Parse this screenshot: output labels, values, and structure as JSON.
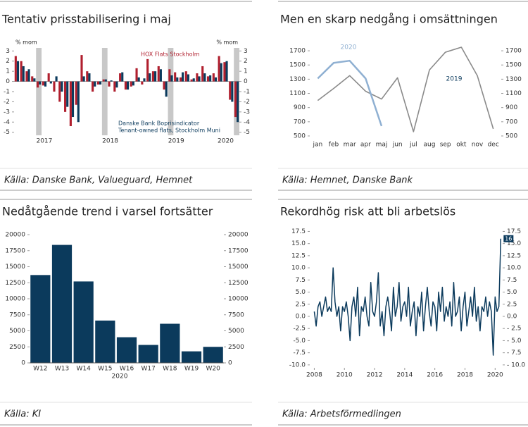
{
  "chart_data": [
    {
      "type": "bar",
      "title": "Tentativ prisstabilisering i maj",
      "source": "Källa: Danske Bank, Valueguard, Hemnet",
      "ylabel": "% mom",
      "categories": [
        null,
        null,
        null,
        null,
        null,
        "2017",
        null,
        null,
        null,
        null,
        null,
        null,
        null,
        null,
        null,
        null,
        null,
        "2018",
        null,
        null,
        null,
        null,
        null,
        null,
        null,
        null,
        null,
        null,
        null,
        "2019",
        null,
        null,
        null,
        null,
        null,
        null,
        null,
        null,
        "2020",
        null,
        null
      ],
      "shaded": [
        4,
        16,
        28,
        40
      ],
      "series": [
        {
          "name": "HOX Flats Stockholm",
          "color": "#b01f2e",
          "values": [
            2.5,
            2.0,
            1.0,
            0.5,
            -0.6,
            -0.4,
            0.8,
            -1.0,
            -2.0,
            -3.0,
            -4.4,
            -2.3,
            2.6,
            1.0,
            -1.0,
            -0.3,
            0.2,
            -0.5,
            -1.0,
            0.8,
            -0.8,
            -0.5,
            1.3,
            -0.3,
            2.2,
            1.0,
            1.5,
            -0.8,
            1.2,
            0.9,
            0.4,
            1.0,
            0.2,
            0.8,
            1.5,
            0.5,
            0.8,
            2.5,
            1.9,
            -1.8,
            -3.5
          ]
        },
        {
          "name": "Danske Bank Boprisindicator",
          "note": "Tenant-owned flats, Stockholm Muni",
          "color": "#0b3a5c",
          "values": [
            2.0,
            1.5,
            1.2,
            0.3,
            -0.3,
            -0.5,
            -0.2,
            0.5,
            -1.0,
            -2.5,
            -3.5,
            -4.0,
            0.5,
            0.8,
            -0.5,
            -0.3,
            0.2,
            0.1,
            -0.6,
            0.9,
            -0.8,
            -0.4,
            0.4,
            0.3,
            0.8,
            1.0,
            1.2,
            -1.5,
            0.6,
            0.4,
            0.9,
            0.7,
            0.3,
            0.5,
            0.8,
            0.6,
            0.4,
            1.8,
            2.0,
            -2.0,
            -4.0
          ]
        }
      ],
      "ylim": [
        -5.3,
        3.3
      ],
      "yticks": [
        -5,
        -4,
        -3,
        -2,
        -1,
        0,
        1,
        2,
        3
      ],
      "y2lim": [
        -5.3,
        3.3
      ],
      "y2ticks": [
        -5,
        -4,
        -3,
        -2,
        -1,
        0,
        1,
        2,
        3
      ]
    },
    {
      "type": "line",
      "title": "Men en skarp nedgång i omsättningen",
      "source": "Källa: Hemnet, Danske Bank",
      "categories": [
        "jan",
        "feb",
        "mar",
        "apr",
        "maj",
        "jun",
        "jul",
        "aug",
        "sep",
        "okt",
        "nov",
        "dec"
      ],
      "series": [
        {
          "name": "2020",
          "color": "#8fb0d2",
          "values": [
            1310,
            1530,
            1560,
            1310,
            640,
            null,
            null,
            null,
            null,
            null,
            null,
            null
          ]
        },
        {
          "name": "2019",
          "color": "#8a8a8a",
          "values": [
            1000,
            1170,
            1350,
            1130,
            1020,
            1320,
            560,
            1430,
            1680,
            1750,
            1350,
            600
          ]
        }
      ],
      "ylim": [
        450,
        1800
      ],
      "yticks": [
        500,
        700,
        900,
        1100,
        1300,
        1500,
        1700
      ],
      "y2lim": [
        450,
        1800
      ],
      "y2ticks": [
        500,
        700,
        900,
        1100,
        1300,
        1500,
        1700
      ]
    },
    {
      "type": "bar",
      "title": "Nedåtgående trend i varsel fortsätter",
      "source": "Källa: KI",
      "xlabel": "2020",
      "categories": [
        "W12",
        "W13",
        "W14",
        "W15",
        "W16",
        "W17",
        "W18",
        "W19",
        "W20"
      ],
      "values": [
        13700,
        18400,
        12700,
        6600,
        4000,
        2800,
        6100,
        1800,
        2500
      ],
      "color": "#0b3a5c",
      "ylim": [
        0,
        20000
      ],
      "yticks": [
        0,
        2500,
        5000,
        7500,
        10000,
        12500,
        15000,
        17500,
        20000
      ],
      "y2lim": [
        0,
        20000
      ],
      "y2ticks": [
        0,
        2500,
        5000,
        7500,
        10000,
        12500,
        15000,
        17500,
        20000
      ]
    },
    {
      "type": "line",
      "title": "Rekordhög risk att bli arbetslös",
      "source": "Källa: Arbetsförmedlingen",
      "color": "#0b3a5c",
      "x": [
        2008,
        2008.125,
        2008.25,
        2008.375,
        2008.5,
        2008.625,
        2008.75,
        2008.875,
        2009,
        2009.125,
        2009.25,
        2009.375,
        2009.5,
        2009.625,
        2009.75,
        2009.875,
        2010,
        2010.125,
        2010.25,
        2010.375,
        2010.5,
        2010.625,
        2010.75,
        2010.875,
        2011,
        2011.125,
        2011.25,
        2011.375,
        2011.5,
        2011.625,
        2011.75,
        2011.875,
        2012,
        2012.125,
        2012.25,
        2012.375,
        2012.5,
        2012.625,
        2012.75,
        2012.875,
        2013,
        2013.125,
        2013.25,
        2013.375,
        2013.5,
        2013.625,
        2013.75,
        2013.875,
        2014,
        2014.125,
        2014.25,
        2014.375,
        2014.5,
        2014.625,
        2014.75,
        2014.875,
        2015,
        2015.125,
        2015.25,
        2015.375,
        2015.5,
        2015.625,
        2015.75,
        2015.875,
        2016,
        2016.125,
        2016.25,
        2016.375,
        2016.5,
        2016.625,
        2016.75,
        2016.875,
        2017,
        2017.125,
        2017.25,
        2017.375,
        2017.5,
        2017.625,
        2017.75,
        2017.875,
        2018,
        2018.125,
        2018.25,
        2018.375,
        2018.5,
        2018.625,
        2018.75,
        2018.875,
        2019,
        2019.125,
        2019.25,
        2019.375,
        2019.5,
        2019.625,
        2019.75,
        2019.875,
        2020,
        2020.125,
        2020.25,
        2020.375
      ],
      "values": [
        1,
        -2,
        2,
        3,
        0,
        2,
        4,
        1,
        2,
        1,
        10,
        3,
        0,
        2,
        -3,
        2,
        1,
        3,
        0,
        -5,
        2,
        4,
        0,
        6,
        -4,
        2,
        1,
        4,
        0,
        -2,
        7,
        1,
        0,
        3,
        9,
        -2,
        1,
        -4,
        2,
        4,
        1,
        -3,
        6,
        0,
        2,
        7,
        -1,
        2,
        3,
        0,
        6,
        -2,
        1,
        3,
        -4,
        2,
        0,
        5,
        -3,
        2,
        6,
        1,
        -2,
        3,
        2,
        -3,
        5,
        1,
        6,
        -1,
        2,
        0,
        3,
        -2,
        7,
        0,
        1,
        4,
        -3,
        2,
        5,
        -2,
        1,
        4,
        0,
        6,
        -1,
        2,
        -3,
        2,
        1,
        4,
        0,
        3,
        1,
        -8,
        4,
        1,
        2,
        16
      ],
      "xlim": [
        2007.7,
        2020.5
      ],
      "xticks": [
        2008,
        2010,
        2012,
        2014,
        2016,
        2018,
        2020
      ],
      "ylim": [
        -10.6,
        18
      ],
      "yticks": [
        {
          "value": -10,
          "label": "-10.0"
        },
        {
          "value": -7.5,
          "label": "-7.5"
        },
        {
          "value": -5,
          "label": "-5.0"
        },
        {
          "value": -2.5,
          "label": "-2.5"
        },
        {
          "value": 0,
          "label": "0.0"
        },
        {
          "value": 2.5,
          "label": "2.5"
        },
        {
          "value": 5,
          "label": "5.0"
        },
        {
          "value": 7.5,
          "label": "7.5"
        },
        {
          "value": 10,
          "label": "10.0"
        },
        {
          "value": 12.5,
          "label": "12.5"
        },
        {
          "value": 15,
          "label": "15.0"
        },
        {
          "value": 17.5,
          "label": "17.5"
        }
      ],
      "y2lim": [
        -10.6,
        18
      ],
      "y2ticks": [
        {
          "value": -10,
          "label": "- 10.0"
        },
        {
          "value": -7.5,
          "label": "- 7.5"
        },
        {
          "value": -5,
          "label": "- 5.0"
        },
        {
          "value": -2.5,
          "label": "- 2.5"
        },
        {
          "value": 0,
          "label": "0.0"
        },
        {
          "value": 2.5,
          "label": "2.5"
        },
        {
          "value": 5,
          "label": "5.0"
        },
        {
          "value": 7.5,
          "label": "7.5"
        },
        {
          "value": 10,
          "label": "10.0"
        },
        {
          "value": 12.5,
          "label": "12.5"
        },
        {
          "value": 15,
          "label": "15.0"
        },
        {
          "value": 17.5,
          "label": "17.5"
        }
      ]
    }
  ]
}
